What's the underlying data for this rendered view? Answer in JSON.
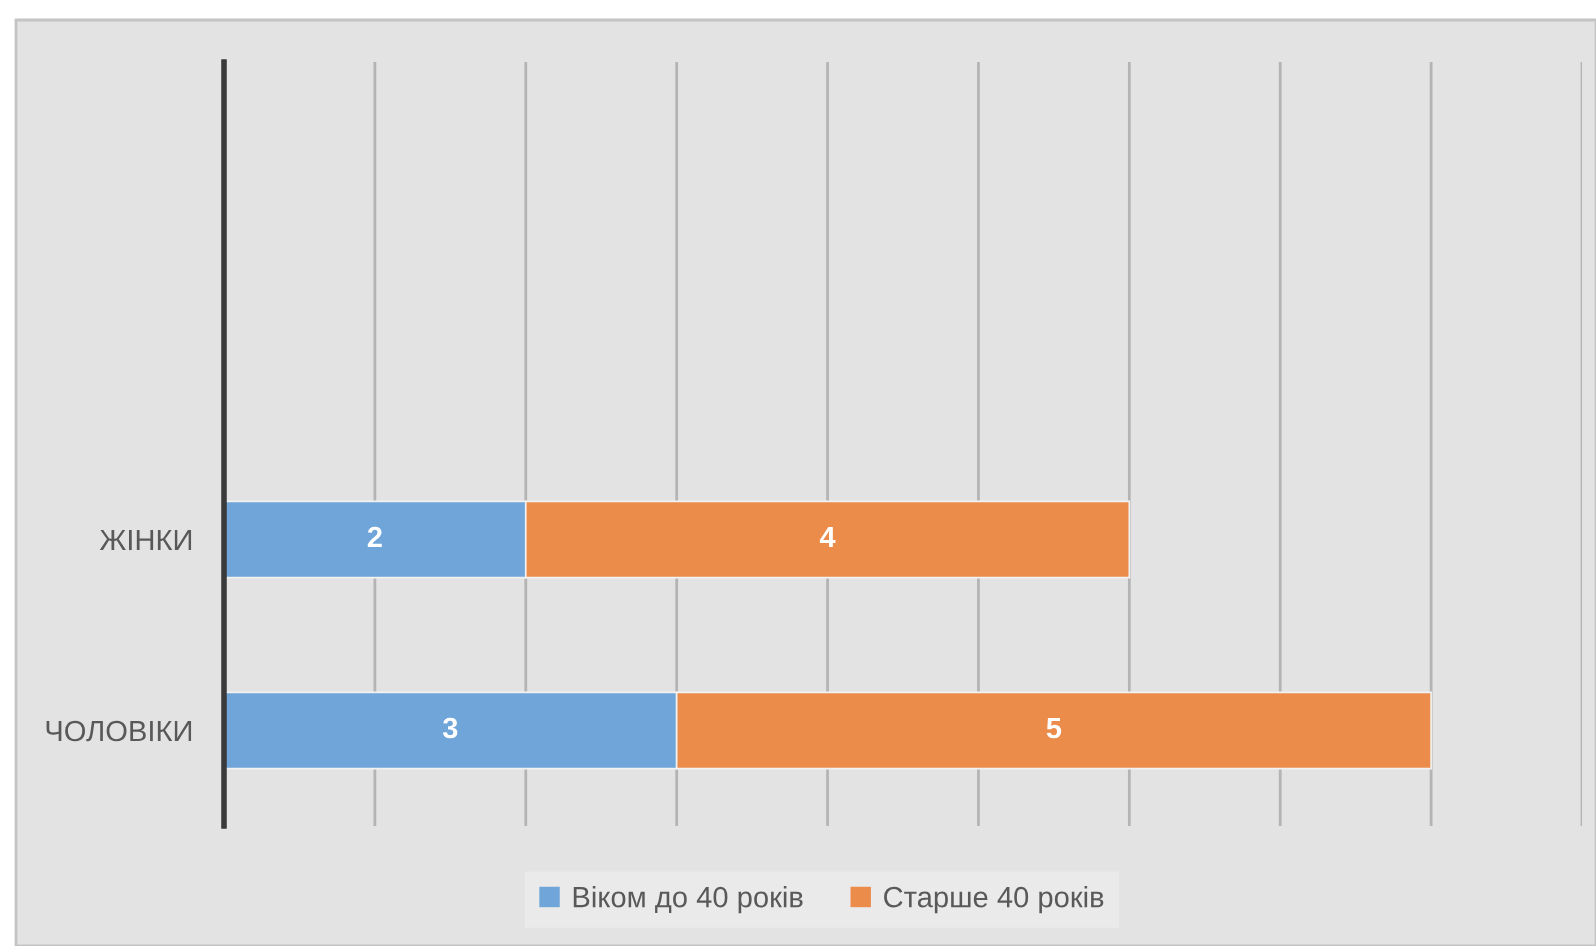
{
  "chart_data": {
    "type": "bar",
    "orientation": "horizontal",
    "stacked": true,
    "categories": [
      null,
      null,
      "ЖІНКИ",
      "ЧОЛОВІКИ"
    ],
    "series": [
      {
        "name": "Віком до 40 років",
        "color": "#6fa5d8",
        "values": [
          null,
          null,
          2,
          3
        ]
      },
      {
        "name": "Старше 40 років",
        "color": "#eb8c4b",
        "values": [
          null,
          null,
          4,
          5
        ]
      }
    ],
    "xlim": [
      0,
      9
    ],
    "xticks": [
      {
        "value": 0,
        "label": null
      },
      {
        "value": 1,
        "label": null
      },
      {
        "value": 2,
        "label": null
      },
      {
        "value": 3,
        "label": null
      },
      {
        "value": 4,
        "label": null
      },
      {
        "value": 5,
        "label": null
      },
      {
        "value": 6,
        "label": null
      },
      {
        "value": 7,
        "label": null
      },
      {
        "value": 8,
        "label": null
      },
      {
        "value": 9,
        "label": null
      }
    ],
    "grid": "x",
    "legend": "bottom",
    "tick_labels": "y",
    "data_labels": true
  }
}
